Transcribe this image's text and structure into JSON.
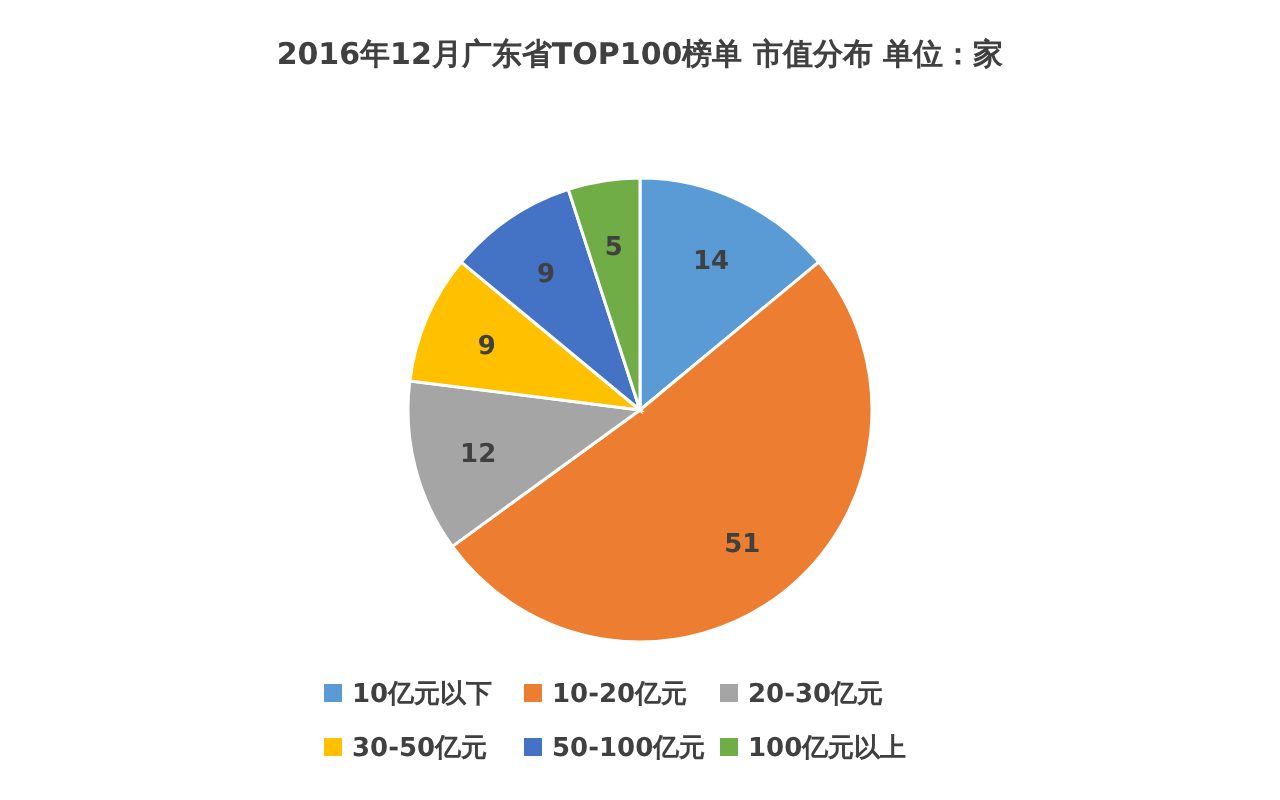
{
  "chart_data": {
    "type": "pie",
    "title": "2016年12月广东省TOP100榜单 市值分布  单位：家",
    "categories": [
      "10亿元以下",
      "10-20亿元",
      "20-30亿元",
      "30-50亿元",
      "50-100亿元",
      "100亿元以上"
    ],
    "values": [
      14,
      51,
      12,
      9,
      9,
      5
    ],
    "colors": [
      "#5b9bd5",
      "#ed7d31",
      "#a5a5a5",
      "#ffc000",
      "#4472c4",
      "#70ad47"
    ],
    "data_labels": true,
    "legend": "bottom"
  }
}
